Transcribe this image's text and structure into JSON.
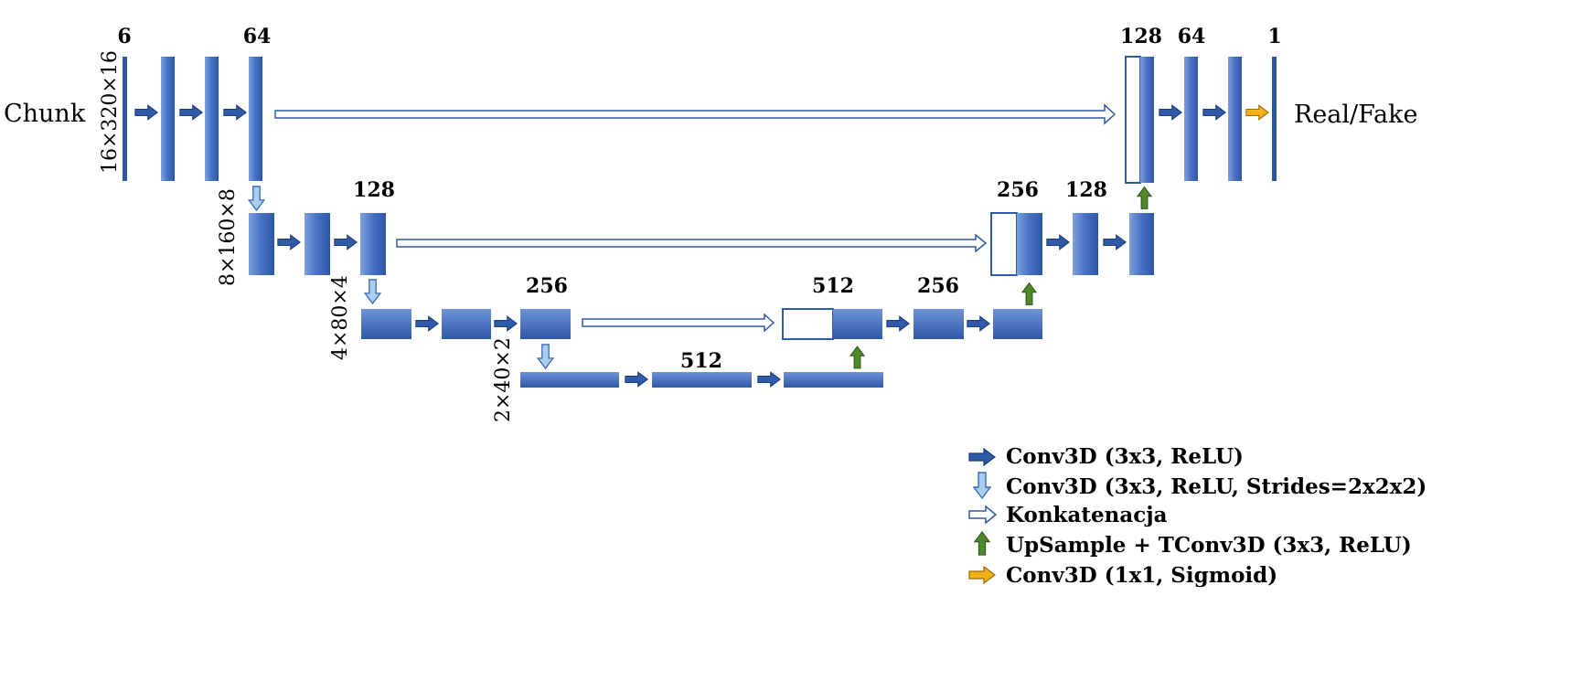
{
  "input": {
    "label": "Chunk"
  },
  "output": {
    "label": "Real/Fake"
  },
  "dimensions": [
    "16×320×16",
    "8×160×8",
    "4×80×4",
    "2×40×2"
  ],
  "channels": {
    "l1_in": "6",
    "l1_enc": "64",
    "l1_dec_cat": "128",
    "l1_dec": "64",
    "l1_out": "1",
    "l2_enc": "128",
    "l2_dec_cat": "256",
    "l2_dec": "128",
    "l3_enc": "256",
    "l3_dec_cat": "512",
    "l3_dec": "256",
    "bottleneck": "512"
  },
  "legend": [
    {
      "label": "Conv3D (3x3, ReLU)",
      "icon": "conv-arrow-icon",
      "color": "#2e5aa8"
    },
    {
      "label": "Conv3D (3x3, ReLU, Strides=2x2x2)",
      "icon": "strided-conv-arrow-icon",
      "color": "#a9cdf0"
    },
    {
      "label": "Konkatenacja",
      "icon": "concat-arrow-icon",
      "color": "#4472c4"
    },
    {
      "label": "UpSample + TConv3D (3x3, ReLU)",
      "icon": "upsample-arrow-icon",
      "color": "#4f8a2a"
    },
    {
      "label": "Conv3D (1x1, Sigmoid)",
      "icon": "sigmoid-arrow-icon",
      "color": "#e8a90c"
    }
  ]
}
